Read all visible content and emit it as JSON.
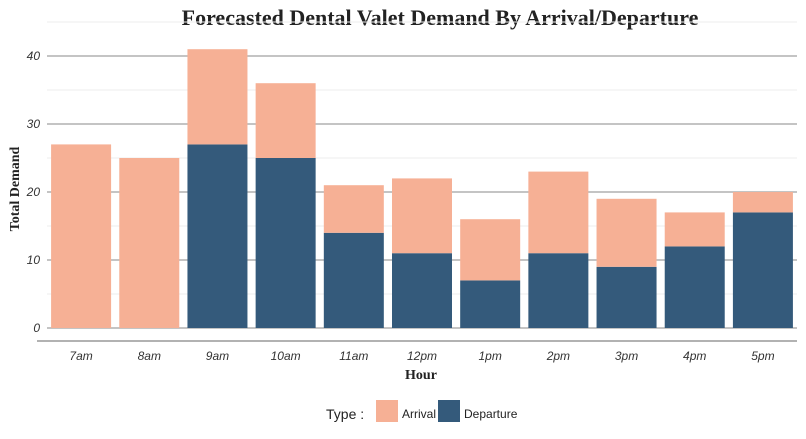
{
  "chart_data": {
    "type": "bar",
    "stacked": true,
    "title": "Forecasted Dental Valet Demand By Arrival/Departure",
    "xlabel": "Hour",
    "ylabel": "Total Demand",
    "categories": [
      "7am",
      "8am",
      "9am",
      "10am",
      "11am",
      "12pm",
      "1pm",
      "2pm",
      "3pm",
      "4pm",
      "5pm"
    ],
    "series": [
      {
        "name": "Departure",
        "color": "#345a7b",
        "values": [
          0,
          0,
          27,
          25,
          14,
          11,
          7,
          11,
          9,
          12,
          17
        ]
      },
      {
        "name": "Arrival",
        "color": "#f6b095",
        "values": [
          27,
          25,
          14,
          11,
          7,
          11,
          9,
          12,
          10,
          5,
          3
        ]
      }
    ],
    "ylim": [
      0,
      43
    ],
    "yticks": [
      0,
      10,
      20,
      30,
      40
    ],
    "grid": true,
    "legend": {
      "title": "Type :",
      "placement": "bottom",
      "order": [
        "Arrival",
        "Departure"
      ]
    }
  }
}
